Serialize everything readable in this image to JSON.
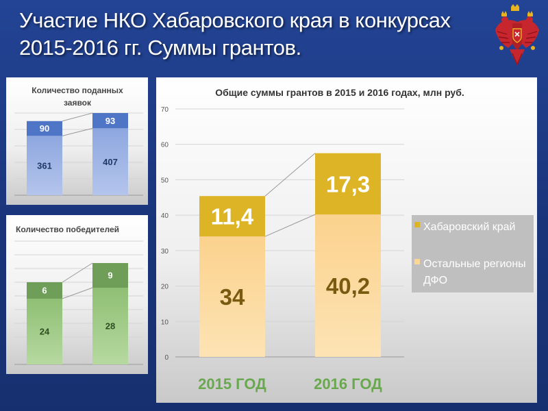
{
  "slide": {
    "title_line1": "Участие НКО Хабаровского края в конкурсах",
    "title_line2": "2015-2016 гг. Суммы грантов."
  },
  "colors": {
    "background": "#1d3a7a",
    "blue_top": "#4f76c6",
    "blue_bottom": "#a9bde8",
    "green_top": "#6e9e57",
    "green_bottom": "#a9d08e",
    "gold": "#dcb425",
    "cream": "#fcd696",
    "category_label": "#6aa84f",
    "data_label_dark": "#7a5a10"
  },
  "icons": {
    "emblem": "double-headed-eagle-emblem"
  },
  "chart_data": [
    {
      "type": "bar",
      "stacked": true,
      "title": "Количество поданных заявок",
      "categories": [
        "",
        ""
      ],
      "series": [
        {
          "values": [
            361,
            407
          ]
        },
        {
          "values": [
            90,
            93
          ]
        }
      ],
      "ylim": [
        0,
        500
      ],
      "grid": true,
      "legend": "none"
    },
    {
      "type": "bar",
      "stacked": true,
      "title": "Количество победителей",
      "categories": [
        "",
        ""
      ],
      "series": [
        {
          "values": [
            24,
            28
          ]
        },
        {
          "values": [
            6,
            9
          ]
        }
      ],
      "ylim": [
        0,
        45
      ],
      "grid": true,
      "legend": "none"
    },
    {
      "type": "bar",
      "stacked": true,
      "title": "Общие суммы грантов в 2015 и 2016 годах, млн руб.",
      "categories": [
        "2015 ГОД",
        "2016 ГОД"
      ],
      "series": [
        {
          "name": "Остальные регионы ДФО",
          "values": [
            34,
            40.2
          ],
          "labels": [
            "34",
            "40,2"
          ]
        },
        {
          "name": "Хабаровский край",
          "values": [
            11.4,
            17.3
          ],
          "labels": [
            "11,4",
            "17,3"
          ]
        }
      ],
      "yticks": [
        "0",
        "10",
        "20",
        "30",
        "40",
        "50",
        "60",
        "70"
      ],
      "ylim": [
        0,
        70
      ],
      "grid": true,
      "legend": "right"
    }
  ]
}
